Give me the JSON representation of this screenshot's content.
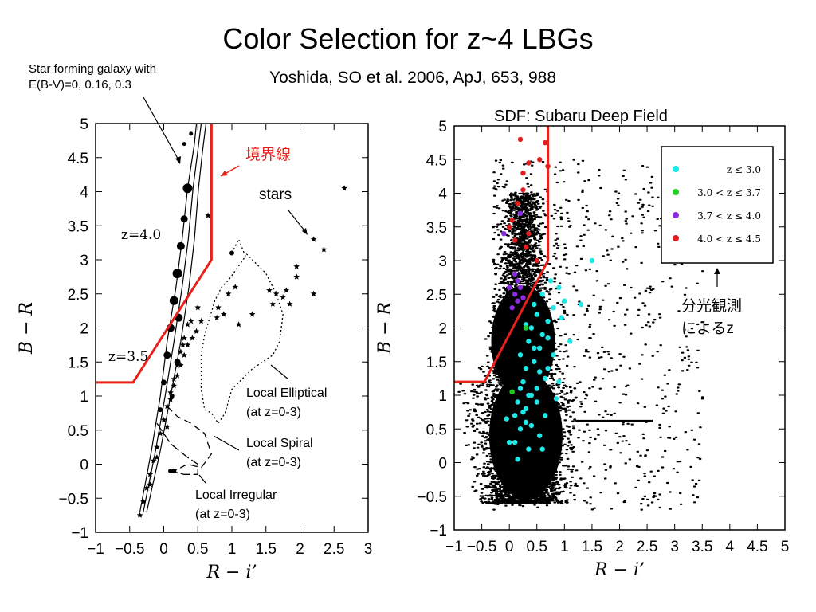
{
  "title": "Color Selection for z~4 LBGs",
  "subtitle": "Yoshida, SO et al. 2006, ApJ, 653, 988",
  "left_note": [
    "Star forming galaxy with",
    "E(B-V)=0, 0.16, 0.3"
  ],
  "sdf_label": "SDF: Subaru Deep Field",
  "colors": {
    "boundary": "#e8201a",
    "cyan": "#1ee8e8",
    "green": "#22cc22",
    "purple": "#8a2be2",
    "red": "#e02020"
  },
  "chart_data": [
    {
      "type": "scatter",
      "xlabel": "R − i’",
      "ylabel": "B − R",
      "xlim": [
        -1,
        3
      ],
      "ylim": [
        -1,
        5
      ],
      "x_ticks": [
        -1,
        -0.5,
        0,
        0.5,
        1,
        1.5,
        2,
        2.5,
        3
      ],
      "y_ticks": [
        -1,
        -0.5,
        0,
        0.5,
        1,
        1.5,
        2,
        2.5,
        3,
        3.5,
        4,
        4.5,
        5
      ],
      "tick_labels_x": [
        "−1",
        "−0.5",
        "0",
        "0.5",
        "1",
        "1.5",
        "2",
        "2.5",
        "3"
      ],
      "tick_labels_y": [
        "−1",
        "−0.5",
        "0",
        "0.5",
        "1",
        "1.5",
        "2",
        "2.5",
        "3",
        "3.5",
        "4",
        "4.5",
        "5"
      ],
      "boundary": [
        [
          -1,
          1.2
        ],
        [
          -0.45,
          1.2
        ],
        [
          0.7,
          3.0
        ],
        [
          0.7,
          5.0
        ]
      ],
      "boundary_label": "境界線",
      "series": [
        {
          "kind": "track",
          "points": [
            [
              -0.35,
              -0.7
            ],
            [
              -0.18,
              0.2
            ],
            [
              -0.05,
              1.0
            ],
            [
              0.05,
              1.8
            ],
            [
              0.18,
              2.6
            ],
            [
              0.27,
              3.3
            ],
            [
              0.35,
              4.05
            ],
            [
              0.45,
              4.7
            ],
            [
              0.48,
              5.0
            ]
          ]
        },
        {
          "kind": "track",
          "points": [
            [
              -0.3,
              -0.7
            ],
            [
              -0.12,
              0.2
            ],
            [
              0.02,
              1.0
            ],
            [
              0.15,
              1.8
            ],
            [
              0.27,
              2.6
            ],
            [
              0.36,
              3.3
            ],
            [
              0.43,
              4.05
            ],
            [
              0.5,
              4.6
            ],
            [
              0.55,
              5.0
            ]
          ]
        },
        {
          "kind": "track",
          "points": [
            [
              -0.25,
              -0.7
            ],
            [
              -0.05,
              0.2
            ],
            [
              0.1,
              1.0
            ],
            [
              0.25,
              1.8
            ],
            [
              0.37,
              2.6
            ],
            [
              0.45,
              3.3
            ],
            [
              0.51,
              4.05
            ],
            [
              0.57,
              4.6
            ],
            [
              0.62,
              5.0
            ]
          ]
        },
        {
          "kind": "redshift_dots",
          "points": [
            [
              -0.05,
              0.8,
              3
            ],
            [
              0.0,
              1.2,
              3.5
            ],
            [
              0.05,
              1.6,
              4.5
            ],
            [
              0.1,
              2.0,
              5
            ],
            [
              0.15,
              2.4,
              5.5
            ],
            [
              0.2,
              2.8,
              6
            ],
            [
              0.25,
              3.2,
              5
            ],
            [
              0.3,
              3.6,
              4.5
            ],
            [
              0.35,
              4.05,
              6
            ],
            [
              0.22,
              2.15,
              5
            ],
            [
              0.2,
              1.5,
              4
            ],
            [
              0.12,
              1.0,
              3
            ],
            [
              0.3,
              4.7,
              2.5
            ],
            [
              0.4,
              4.85,
              2.5
            ]
          ]
        },
        {
          "kind": "stars",
          "points": [
            [
              -0.35,
              -0.75
            ],
            [
              -0.3,
              -0.55
            ],
            [
              -0.25,
              -0.35
            ],
            [
              -0.2,
              -0.15
            ],
            [
              -0.15,
              0.05
            ],
            [
              -0.1,
              0.25
            ],
            [
              -0.05,
              0.45
            ],
            [
              0.0,
              0.65
            ],
            [
              0.05,
              0.85
            ],
            [
              0.1,
              1.05
            ],
            [
              0.15,
              1.25
            ],
            [
              0.2,
              1.45
            ],
            [
              0.25,
              1.65
            ],
            [
              0.3,
              1.85
            ],
            [
              0.35,
              2.05
            ],
            [
              0.1,
              0.95
            ],
            [
              0.2,
              1.3
            ],
            [
              0.3,
              1.6
            ],
            [
              0.28,
              1.75
            ],
            [
              0.4,
              2.1
            ],
            [
              0.42,
              1.85
            ],
            [
              0.48,
              1.95
            ],
            [
              0.55,
              2.1
            ],
            [
              0.5,
              2.3
            ],
            [
              -0.2,
              -0.3
            ],
            [
              -0.1,
              0.1
            ],
            [
              0.05,
              0.55
            ],
            [
              0.15,
              1.15
            ],
            [
              0.25,
              1.45
            ],
            [
              0.35,
              1.75
            ],
            [
              0.65,
              3.65
            ],
            [
              2.65,
              4.05
            ],
            [
              2.2,
              3.3
            ],
            [
              2.35,
              3.15
            ],
            [
              1.95,
              2.9
            ],
            [
              1.95,
              2.75
            ],
            [
              1.55,
              2.55
            ],
            [
              1.65,
              2.5
            ],
            [
              1.75,
              2.45
            ],
            [
              1.8,
              2.55
            ],
            [
              1.85,
              2.35
            ],
            [
              1.6,
              2.35
            ],
            [
              2.2,
              2.5
            ],
            [
              0.8,
              2.3
            ],
            [
              0.78,
              2.15
            ],
            [
              0.88,
              2.2
            ],
            [
              0.95,
              2.5
            ],
            [
              1.05,
              2.6
            ],
            [
              1.1,
              2.05
            ],
            [
              1.3,
              2.2
            ]
          ]
        },
        {
          "kind": "elliptical",
          "points": [
            [
              1.0,
              3.1
            ],
            [
              1.1,
              3.3
            ],
            [
              1.2,
              3.05
            ],
            [
              0.95,
              2.7
            ],
            [
              0.85,
              2.6
            ],
            [
              0.75,
              2.4
            ],
            [
              0.6,
              1.9
            ],
            [
              0.55,
              1.6
            ],
            [
              0.55,
              1.1
            ],
            [
              0.6,
              0.8
            ],
            [
              0.7,
              0.75
            ],
            [
              0.8,
              0.6
            ],
            [
              0.9,
              0.75
            ],
            [
              1.0,
              1.1
            ],
            [
              1.1,
              1.2
            ],
            [
              1.3,
              1.4
            ],
            [
              1.6,
              1.6
            ],
            [
              1.7,
              1.8
            ],
            [
              1.75,
              2.2
            ],
            [
              1.65,
              2.5
            ],
            [
              1.5,
              2.8
            ],
            [
              1.3,
              3.0
            ],
            [
              1.2,
              3.1
            ]
          ]
        },
        {
          "kind": "spiral",
          "points": [
            [
              0.05,
              0.85
            ],
            [
              0.2,
              0.7
            ],
            [
              0.4,
              0.6
            ],
            [
              0.6,
              0.45
            ],
            [
              0.7,
              0.15
            ],
            [
              0.55,
              -0.05
            ],
            [
              0.35,
              0.0
            ],
            [
              0.15,
              -0.1
            ]
          ]
        },
        {
          "kind": "irregular",
          "points": [
            [
              -0.1,
              0.6
            ],
            [
              0.1,
              0.3
            ],
            [
              0.35,
              0.1
            ],
            [
              0.5,
              0.0
            ],
            [
              0.5,
              -0.15
            ],
            [
              0.3,
              -0.15
            ],
            [
              0.1,
              -0.1
            ]
          ]
        }
      ],
      "labels": {
        "z40": "z=4.0",
        "z35": "z=3.5",
        "stars": "stars",
        "elliptical": [
          "Local Elliptical",
          "(at z=0-3)"
        ],
        "spiral": [
          "Local  Spiral",
          "(at z=0-3)"
        ],
        "irregular": [
          "Local  Irregular",
          "(at z=0-3)"
        ]
      }
    },
    {
      "type": "scatter",
      "xlabel": "R − i’",
      "ylabel": "B − R",
      "xlim": [
        -1,
        5
      ],
      "ylim": [
        -1,
        5
      ],
      "x_ticks": [
        -1,
        -0.5,
        0,
        0.5,
        1,
        1.5,
        2,
        2.5,
        3,
        3.5,
        4,
        4.5,
        5
      ],
      "y_ticks": [
        -1,
        -0.5,
        0,
        0.5,
        1,
        1.5,
        2,
        2.5,
        3,
        3.5,
        4,
        4.5,
        5
      ],
      "tick_labels_x": [
        "−1",
        "−0.5",
        "0",
        "0.5",
        "1",
        "1.5",
        "2",
        "2.5",
        "3",
        "3.5",
        "4",
        "4.5",
        "5"
      ],
      "tick_labels_y": [
        "−1",
        "−0.5",
        "0",
        "0.5",
        "1",
        "1.5",
        "2",
        "2.5",
        "3",
        "3.5",
        "4",
        "4.5",
        "5"
      ],
      "boundary": [
        [
          -1,
          1.2
        ],
        [
          -0.45,
          1.2
        ],
        [
          0.7,
          3.0
        ],
        [
          0.7,
          5.0
        ]
      ],
      "legend": {
        "placement": "top-right",
        "entries": [
          {
            "label": "z ≤ 3.0",
            "color_key": "cyan"
          },
          {
            "label": "3.0 < z ≤ 3.7",
            "color_key": "green"
          },
          {
            "label": "3.7 < z ≤ 4.0",
            "color_key": "purple"
          },
          {
            "label": "4.0 < z ≤ 4.5",
            "color_key": "red"
          }
        ]
      },
      "annotation": [
        "分光観測",
        "によるz"
      ],
      "spectroscopic": {
        "cyan": [
          [
            0.1,
            0.3
          ],
          [
            0.2,
            0.5
          ],
          [
            0.3,
            0.8
          ],
          [
            0.15,
            0.9
          ],
          [
            0.4,
            1.0
          ],
          [
            0.25,
            1.2
          ],
          [
            0.5,
            1.1
          ],
          [
            0.3,
            1.4
          ],
          [
            0.45,
            1.5
          ],
          [
            0.2,
            1.6
          ],
          [
            0.55,
            1.7
          ],
          [
            0.35,
            1.8
          ],
          [
            0.6,
            1.9
          ],
          [
            0.4,
            2.0
          ],
          [
            0.7,
            2.1
          ],
          [
            0.5,
            2.2
          ],
          [
            0.8,
            2.3
          ],
          [
            0.6,
            2.5
          ],
          [
            0.9,
            2.6
          ],
          [
            1.0,
            2.4
          ],
          [
            0.75,
            2.7
          ],
          [
            0.45,
            2.35
          ],
          [
            1.1,
            1.8
          ],
          [
            0.9,
            1.2
          ],
          [
            0.65,
            0.7
          ],
          [
            -0.05,
            0.65
          ],
          [
            0.05,
            1.05
          ],
          [
            0.55,
            0.4
          ],
          [
            0.35,
            0.2
          ],
          [
            0.7,
            1.4
          ],
          [
            1.3,
            2.35
          ],
          [
            1.5,
            3.0
          ],
          [
            0.3,
            0.6
          ],
          [
            0.2,
            1.1
          ],
          [
            0.5,
            0.9
          ],
          [
            0.0,
            0.3
          ],
          [
            0.15,
            0.05
          ],
          [
            0.6,
            0.2
          ],
          [
            0.4,
            0.55
          ],
          [
            0.85,
            0.95
          ],
          [
            0.25,
            0.75
          ],
          [
            0.65,
            1.25
          ],
          [
            0.35,
            1.0
          ],
          [
            0.55,
            1.35
          ],
          [
            0.45,
            1.7
          ],
          [
            0.8,
            1.6
          ],
          [
            0.3,
            2.05
          ],
          [
            0.95,
            2.15
          ],
          [
            0.7,
            1.85
          ],
          [
            0.1,
            0.7
          ]
        ],
        "green": [
          [
            0.05,
            1.05
          ],
          [
            0.3,
            2.0
          ]
        ],
        "purple": [
          [
            0.1,
            2.8
          ],
          [
            0.0,
            2.6
          ],
          [
            0.15,
            2.4
          ],
          [
            0.2,
            2.6
          ],
          [
            0.05,
            2.3
          ],
          [
            0.25,
            2.45
          ],
          [
            0.1,
            2.5
          ],
          [
            0.15,
            2.7
          ],
          [
            -0.1,
            3.4
          ],
          [
            0.2,
            3.7
          ]
        ],
        "red": [
          [
            0.2,
            4.8
          ],
          [
            0.65,
            4.75
          ],
          [
            0.35,
            4.45
          ],
          [
            0.55,
            4.5
          ],
          [
            0.25,
            4.3
          ],
          [
            0.7,
            4.4
          ],
          [
            0.15,
            3.85
          ],
          [
            0.25,
            4.05
          ],
          [
            0.0,
            3.5
          ],
          [
            0.1,
            3.3
          ],
          [
            0.3,
            3.2
          ],
          [
            0.5,
            3.0
          ],
          [
            0.05,
            3.6
          ],
          [
            0.35,
            3.4
          ]
        ]
      }
    }
  ]
}
